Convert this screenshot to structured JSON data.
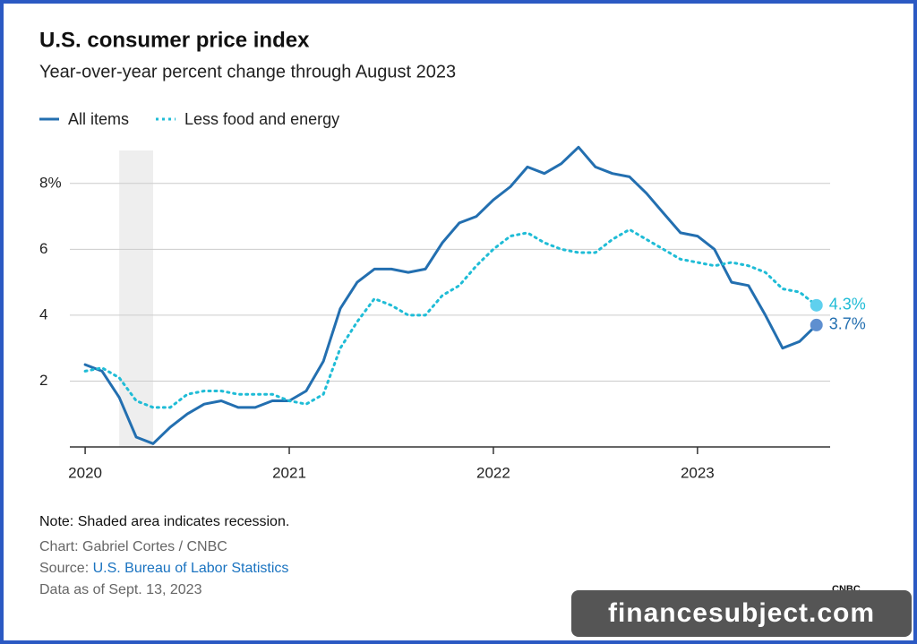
{
  "chart_data": {
    "type": "line",
    "title": "U.S. consumer price index",
    "subtitle": "Year-over-year percent change through August 2023",
    "x": [
      2020,
      2020.083,
      2020.167,
      2020.25,
      2020.333,
      2020.417,
      2020.5,
      2020.583,
      2020.667,
      2020.75,
      2020.833,
      2020.917,
      2021,
      2021.083,
      2021.167,
      2021.25,
      2021.333,
      2021.417,
      2021.5,
      2021.583,
      2021.667,
      2021.75,
      2021.833,
      2021.917,
      2022,
      2022.083,
      2022.167,
      2022.25,
      2022.333,
      2022.417,
      2022.5,
      2022.583,
      2022.667,
      2022.75,
      2022.833,
      2022.917,
      2023,
      2023.083,
      2023.167,
      2023.25,
      2023.333,
      2023.417,
      2023.5,
      2023.583
    ],
    "series": [
      {
        "name": "All items",
        "color": "#236fb0",
        "dot_color": "#5e8fd0",
        "dashed": false,
        "values": [
          2.5,
          2.3,
          1.5,
          0.3,
          0.1,
          0.6,
          1.0,
          1.3,
          1.4,
          1.2,
          1.2,
          1.4,
          1.4,
          1.7,
          2.6,
          4.2,
          5.0,
          5.4,
          5.4,
          5.3,
          5.4,
          6.2,
          6.8,
          7.0,
          7.5,
          7.9,
          8.5,
          8.3,
          8.6,
          9.1,
          8.5,
          8.3,
          8.2,
          7.7,
          7.1,
          6.5,
          6.4,
          6.0,
          5.0,
          4.9,
          4.0,
          3.0,
          3.2,
          3.7
        ],
        "value_labels": [
          null,
          null,
          null,
          null,
          null,
          null,
          null,
          null,
          null,
          null,
          null,
          null,
          null,
          null,
          null,
          null,
          null,
          null,
          null,
          null,
          null,
          null,
          null,
          null,
          null,
          null,
          null,
          null,
          null,
          null,
          null,
          null,
          null,
          null,
          null,
          null,
          null,
          null,
          null,
          null,
          null,
          null,
          null,
          "3.7%"
        ]
      },
      {
        "name": "Less food and energy",
        "color": "#1fbcd6",
        "dot_color": "#5fd0ee",
        "dashed": true,
        "values": [
          2.3,
          2.4,
          2.1,
          1.4,
          1.2,
          1.2,
          1.6,
          1.7,
          1.7,
          1.6,
          1.6,
          1.6,
          1.4,
          1.3,
          1.6,
          3.0,
          3.8,
          4.5,
          4.3,
          4.0,
          4.0,
          4.6,
          4.9,
          5.5,
          6.0,
          6.4,
          6.5,
          6.2,
          6.0,
          5.9,
          5.9,
          6.3,
          6.6,
          6.3,
          6.0,
          5.7,
          5.6,
          5.5,
          5.6,
          5.5,
          5.3,
          4.8,
          4.7,
          4.3
        ],
        "value_labels": [
          null,
          null,
          null,
          null,
          null,
          null,
          null,
          null,
          null,
          null,
          null,
          null,
          null,
          null,
          null,
          null,
          null,
          null,
          null,
          null,
          null,
          null,
          null,
          null,
          null,
          null,
          null,
          null,
          null,
          null,
          null,
          null,
          null,
          null,
          null,
          null,
          null,
          null,
          null,
          null,
          null,
          null,
          null,
          "4.3%"
        ]
      }
    ],
    "xlim": [
      2019.925,
      2023.65
    ],
    "xticks": [
      2020,
      2021,
      2022,
      2023
    ],
    "ylim": [
      0,
      9
    ],
    "yticks": [
      2,
      4,
      6,
      {
        "value": 8,
        "label": "8%"
      }
    ],
    "grid": true,
    "recession": [
      2020.167,
      2020.333
    ],
    "legend": "top-left",
    "note": "Note: Shaded area indicates recession.",
    "credit": "Chart: Gabriel Cortes / CNBC",
    "source_prefix": "Source:",
    "source": "U.S. Bureau of Labor Statistics",
    "date": "Data as of Sept. 13, 2023",
    "logo": "CNBC",
    "watermark": "financesubject.com"
  }
}
